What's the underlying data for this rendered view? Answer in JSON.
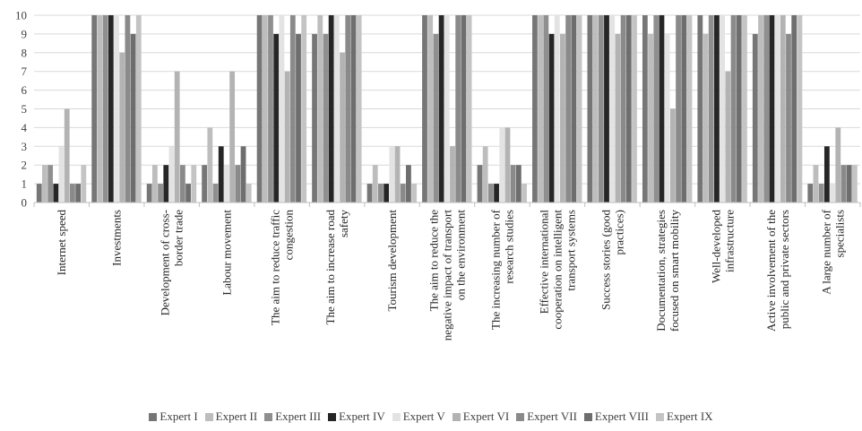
{
  "chart_data": {
    "type": "bar",
    "title": "",
    "xlabel": "",
    "ylabel": "",
    "ylim": [
      0,
      10
    ],
    "yticks": [
      "0",
      "1",
      "2",
      "3",
      "4",
      "5",
      "6",
      "7",
      "8",
      "9",
      "10"
    ],
    "grid": "horizontal",
    "legend_position": "bottom",
    "categories": [
      [
        "Internet speed"
      ],
      [
        "Investments"
      ],
      [
        "Development of cross-",
        "border trade"
      ],
      [
        "Labour movement"
      ],
      [
        "The aim to reduce traffic",
        "congestion"
      ],
      [
        "The aim to increase road",
        "safety"
      ],
      [
        "Tourism development"
      ],
      [
        "The aim to reduce the",
        "negative impact of transport",
        "on the environment"
      ],
      [
        "The increasing number of",
        "research studies"
      ],
      [
        "Effective international",
        "cooperation on intelligent",
        "transport systems"
      ],
      [
        "Success stories (good",
        "practices)"
      ],
      [
        "Documentation, strategies",
        "focused on smart mobility"
      ],
      [
        "Well-developed",
        "infrastructure"
      ],
      [
        "Active involvement of the",
        "public and private sectors"
      ],
      [
        "A large number of",
        "specialists"
      ]
    ],
    "series": [
      {
        "name": "Expert I",
        "color": "#767676",
        "values": [
          1,
          10,
          1,
          2,
          10,
          9,
          1,
          10,
          2,
          10,
          10,
          10,
          10,
          9,
          1
        ]
      },
      {
        "name": "Expert II",
        "color": "#bdbdbd",
        "values": [
          2,
          10,
          2,
          4,
          10,
          10,
          2,
          10,
          3,
          10,
          10,
          9,
          9,
          10,
          2
        ]
      },
      {
        "name": "Expert III",
        "color": "#8f8f8f",
        "values": [
          2,
          10,
          1,
          1,
          10,
          9,
          1,
          9,
          1,
          10,
          10,
          10,
          10,
          10,
          1
        ]
      },
      {
        "name": "Expert IV",
        "color": "#262626",
        "values": [
          1,
          10,
          2,
          3,
          9,
          10,
          1,
          10,
          1,
          9,
          10,
          10,
          10,
          10,
          3
        ]
      },
      {
        "name": "Expert V",
        "color": "#e3e3e3",
        "values": [
          3,
          10,
          3,
          2,
          10,
          10,
          3,
          10,
          4,
          10,
          10,
          9,
          10,
          10,
          1
        ]
      },
      {
        "name": "Expert VI",
        "color": "#b3b3b3",
        "values": [
          5,
          8,
          7,
          7,
          7,
          8,
          3,
          3,
          4,
          9,
          9,
          5,
          7,
          10,
          4
        ]
      },
      {
        "name": "Expert VII",
        "color": "#8a8a8a",
        "values": [
          1,
          10,
          2,
          2,
          10,
          10,
          1,
          10,
          2,
          10,
          10,
          10,
          10,
          9,
          2
        ]
      },
      {
        "name": "Expert VIII",
        "color": "#6e6e6e",
        "values": [
          1,
          9,
          1,
          3,
          9,
          10,
          2,
          10,
          2,
          10,
          10,
          10,
          10,
          10,
          2
        ]
      },
      {
        "name": "Expert IX",
        "color": "#c4c4c4",
        "values": [
          2,
          10,
          2,
          1,
          10,
          10,
          1,
          10,
          1,
          10,
          10,
          10,
          10,
          10,
          2
        ]
      }
    ]
  }
}
